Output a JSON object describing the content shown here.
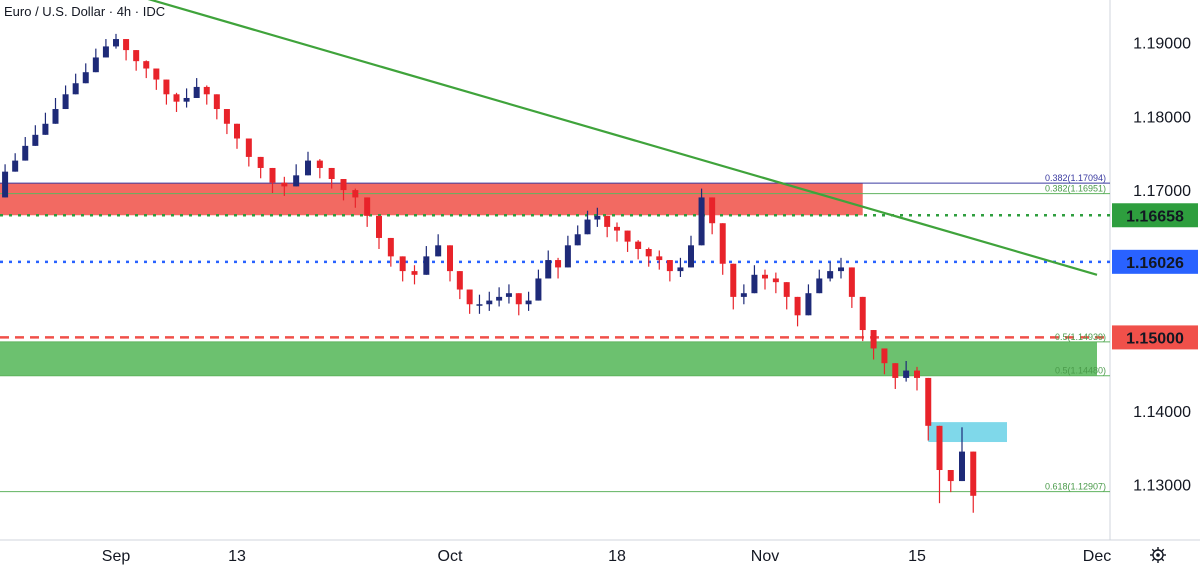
{
  "header": {
    "title": "Euro / U.S. Dollar · 4h · IDC"
  },
  "chart_data": {
    "type": "candlestick",
    "title": "Euro / U.S. Dollar · 4h · IDC",
    "ylim": [
      1.1225,
      1.1958
    ],
    "y_ticks": [
      "1.13000",
      "1.14000",
      "1.17000",
      "1.18000",
      "1.19000"
    ],
    "x_ticks": [
      "Sep",
      "13",
      "Oct",
      "18",
      "Nov",
      "15",
      "Dec"
    ],
    "x_tick_dates": [
      "2021-09-01",
      "2021-09-13",
      "2021-10-01",
      "2021-10-18",
      "2021-11-01",
      "2021-11-15",
      "2021-12-01"
    ],
    "colors": {
      "up": "#1e2a78",
      "down": "#e8232a",
      "trendline": "#3fa33b",
      "red_zone": "#f26a62",
      "green_zone": "#6cc16f",
      "cyan_zone": "#7fd8ea",
      "blue_dotted": "#2962ff",
      "green_dotted": "#2e9e3e",
      "red_dashed": "#f0504a",
      "navy_line": "#3a3aa0",
      "thin_green": "#5fb35f"
    },
    "price_tags": [
      {
        "label": "1.16658",
        "value": 1.16658,
        "color": "#2e9e3e",
        "style": "dotted"
      },
      {
        "label": "1.16026",
        "value": 1.16026,
        "color": "#2962ff",
        "style": "dotted"
      },
      {
        "label": "1.15000",
        "value": 1.15,
        "color": "#f0504a",
        "style": "dashed"
      }
    ],
    "fib_levels": [
      {
        "label": "0.382(1.17094)",
        "value": 1.17094,
        "color": "#3a3aa0"
      },
      {
        "label": "0.382(1.16951)",
        "value": 1.16951,
        "color": "#4a9a4a"
      },
      {
        "label": "0.5(1.14939)",
        "value": 1.14939,
        "color": "#4a9a4a"
      },
      {
        "label": "0.5(1.14480)",
        "value": 1.1448,
        "color": "#4a9a4a"
      },
      {
        "label": "0.618(1.12907)",
        "value": 1.12907,
        "color": "#4a9a4a"
      }
    ],
    "zones": [
      {
        "name": "red-resistance-zone",
        "from": 1.16658,
        "to": 1.17094,
        "x_end": "2021-11-10",
        "color": "#f26a62"
      },
      {
        "name": "green-support-zone",
        "from": 1.1448,
        "to": 1.14939,
        "x_end": "2021-12-01",
        "color": "#6cc16f"
      },
      {
        "name": "cyan-zone",
        "from": 1.1358,
        "to": 1.1385,
        "x_start": "2021-11-16",
        "x_end": "2021-11-23",
        "color": "#7fd8ea"
      }
    ],
    "trendline": {
      "start": [
        "2021-08-30",
        1.198
      ],
      "end": [
        "2021-12-01",
        1.1585
      ]
    },
    "series": [
      {
        "name": "",
        "x": [
          "2021-08-20",
          "2021-08-21",
          "2021-08-22",
          "2021-08-23",
          "2021-08-24",
          "2021-08-25",
          "2021-08-26",
          "2021-08-27",
          "2021-08-28",
          "2021-08-29",
          "2021-08-30",
          "2021-08-31",
          "2021-09-01",
          "2021-09-02",
          "2021-09-03",
          "2021-09-04",
          "2021-09-05",
          "2021-09-06",
          "2021-09-07",
          "2021-09-08",
          "2021-09-09",
          "2021-09-10",
          "2021-09-11",
          "2021-09-12",
          "2021-09-13",
          "2021-09-14",
          "2021-09-15",
          "2021-09-16",
          "2021-09-17",
          "2021-09-18",
          "2021-09-19",
          "2021-09-20",
          "2021-09-21",
          "2021-09-22",
          "2021-09-23",
          "2021-09-24",
          "2021-09-25",
          "2021-09-26",
          "2021-09-27",
          "2021-09-28",
          "2021-09-29",
          "2021-09-30",
          "2021-10-01",
          "2021-10-02",
          "2021-10-03",
          "2021-10-04",
          "2021-10-05",
          "2021-10-06",
          "2021-10-07",
          "2021-10-08",
          "2021-10-09",
          "2021-10-10",
          "2021-10-11",
          "2021-10-12",
          "2021-10-13",
          "2021-10-14",
          "2021-10-15",
          "2021-10-16",
          "2021-10-17",
          "2021-10-18",
          "2021-10-19",
          "2021-10-20",
          "2021-10-21",
          "2021-10-22",
          "2021-10-23",
          "2021-10-24",
          "2021-10-25",
          "2021-10-26",
          "2021-10-27",
          "2021-10-28",
          "2021-10-29",
          "2021-10-30",
          "2021-10-31",
          "2021-11-01",
          "2021-11-02",
          "2021-11-03",
          "2021-11-04",
          "2021-11-05",
          "2021-11-06",
          "2021-11-07",
          "2021-11-08",
          "2021-11-09",
          "2021-11-10",
          "2021-11-11",
          "2021-11-12",
          "2021-11-13",
          "2021-11-14",
          "2021-11-15",
          "2021-11-16",
          "2021-11-17",
          "2021-11-18",
          "2021-11-19",
          "2021-11-20"
        ],
        "values": [
          1.169,
          1.1725,
          1.174,
          1.176,
          1.1775,
          1.179,
          1.181,
          1.183,
          1.1845,
          1.186,
          1.188,
          1.1895,
          1.1905,
          1.189,
          1.1875,
          1.1865,
          1.185,
          1.183,
          1.182,
          1.1825,
          1.184,
          1.183,
          1.181,
          1.179,
          1.177,
          1.1745,
          1.173,
          1.171,
          1.1705,
          1.172,
          1.174,
          1.173,
          1.1715,
          1.17,
          1.169,
          1.1665,
          1.1635,
          1.161,
          1.159,
          1.1585,
          1.161,
          1.1625,
          1.159,
          1.1565,
          1.1545,
          1.1545,
          1.155,
          1.1555,
          1.156,
          1.1545,
          1.155,
          1.158,
          1.1605,
          1.1595,
          1.1625,
          1.164,
          1.166,
          1.1665,
          1.165,
          1.1645,
          1.163,
          1.162,
          1.161,
          1.1605,
          1.159,
          1.1595,
          1.1625,
          1.169,
          1.1655,
          1.16,
          1.1555,
          1.156,
          1.1585,
          1.158,
          1.1575,
          1.1555,
          1.153,
          1.156,
          1.158,
          1.159,
          1.1595,
          1.1555,
          1.151,
          1.1485,
          1.1465,
          1.1445,
          1.1455,
          1.1445,
          1.138,
          1.132,
          1.1305,
          1.1345,
          1.1285
        ]
      }
    ],
    "wick_highs": [
      1.171,
      1.1735,
      1.175,
      1.1772,
      1.1788,
      1.1805,
      1.1825,
      1.1842,
      1.1858,
      1.1872,
      1.1892,
      1.1905,
      1.1912,
      1.1902,
      1.1888,
      1.1876,
      1.1862,
      1.1845,
      1.1832,
      1.1838,
      1.1852,
      1.1842,
      1.1822,
      1.1802,
      1.1782,
      1.176,
      1.1742,
      1.1722,
      1.1718,
      1.1735,
      1.1752,
      1.1742,
      1.1728,
      1.1714,
      1.1702,
      1.1678,
      1.1648,
      1.1622,
      1.1602,
      1.1598,
      1.1624,
      1.164,
      1.1605,
      1.1578,
      1.1558,
      1.1558,
      1.1562,
      1.1568,
      1.1572,
      1.1558,
      1.1562,
      1.1592,
      1.1618,
      1.1608,
      1.1638,
      1.1652,
      1.1672,
      1.1676,
      1.1662,
      1.1656,
      1.1642,
      1.1632,
      1.1622,
      1.1618,
      1.1602,
      1.1608,
      1.1638,
      1.1702,
      1.167,
      1.1615,
      1.1568,
      1.1572,
      1.1598,
      1.1592,
      1.1588,
      1.1568,
      1.1542,
      1.1572,
      1.1592,
      1.1602,
      1.1608,
      1.1568,
      1.1522,
      1.1498,
      1.1478,
      1.146,
      1.1468,
      1.146,
      1.1392,
      1.1335,
      1.1318,
      1.1378,
      1.1298
    ],
    "wick_lows": [
      1.1685,
      1.1715,
      1.173,
      1.1748,
      1.1762,
      1.1778,
      1.1798,
      1.1818,
      1.1832,
      1.1848,
      1.1868,
      1.1882,
      1.1892,
      1.1876,
      1.1862,
      1.1852,
      1.1836,
      1.1816,
      1.1806,
      1.1812,
      1.1826,
      1.1816,
      1.1796,
      1.1776,
      1.1756,
      1.1732,
      1.1716,
      1.1696,
      1.1692,
      1.1708,
      1.1726,
      1.1716,
      1.1702,
      1.1686,
      1.1676,
      1.165,
      1.162,
      1.1596,
      1.1576,
      1.1572,
      1.1596,
      1.161,
      1.1576,
      1.1552,
      1.1532,
      1.1532,
      1.1536,
      1.1542,
      1.1546,
      1.153,
      1.1536,
      1.1566,
      1.1592,
      1.158,
      1.1612,
      1.1626,
      1.1646,
      1.165,
      1.1636,
      1.163,
      1.1616,
      1.1606,
      1.1596,
      1.1592,
      1.1576,
      1.1582,
      1.161,
      1.1676,
      1.164,
      1.1585,
      1.1538,
      1.1545,
      1.157,
      1.1565,
      1.156,
      1.1538,
      1.1515,
      1.1545,
      1.1565,
      1.1576,
      1.158,
      1.154,
      1.1495,
      1.147,
      1.145,
      1.143,
      1.144,
      1.1428,
      1.136,
      1.1275,
      1.129,
      1.133,
      1.1262
    ]
  },
  "icons": {
    "settings": "gear-icon"
  }
}
